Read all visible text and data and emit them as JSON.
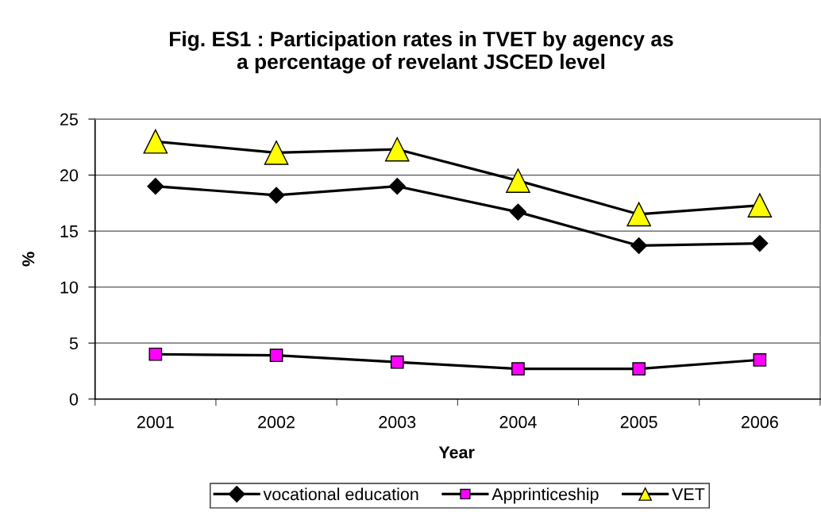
{
  "chart_data": {
    "type": "line",
    "title": "Fig. ES1 : Participation rates in TVET by agency as\na percentage of revelant JSCED level",
    "xlabel": "Year",
    "ylabel": "%",
    "categories": [
      "2001",
      "2002",
      "2003",
      "2004",
      "2005",
      "2006"
    ],
    "series": [
      {
        "name": "vocational education",
        "color": "#000000",
        "marker": "diamond",
        "values": [
          19,
          18.2,
          19,
          16.7,
          13.7,
          13.9
        ]
      },
      {
        "name": "Apprinticeship",
        "color": "#ff00ff",
        "marker": "square",
        "values": [
          4.0,
          3.9,
          3.3,
          2.7,
          2.7,
          3.5
        ]
      },
      {
        "name": "VET",
        "color": "#ffff00",
        "marker": "triangle",
        "values": [
          23,
          22,
          22.3,
          19.5,
          16.5,
          17.3
        ]
      }
    ],
    "ylim": [
      0,
      25
    ],
    "yticks": [
      0,
      5,
      10,
      15,
      20,
      25
    ],
    "grid": "y",
    "legend": "bottom",
    "line_style": "solid"
  }
}
